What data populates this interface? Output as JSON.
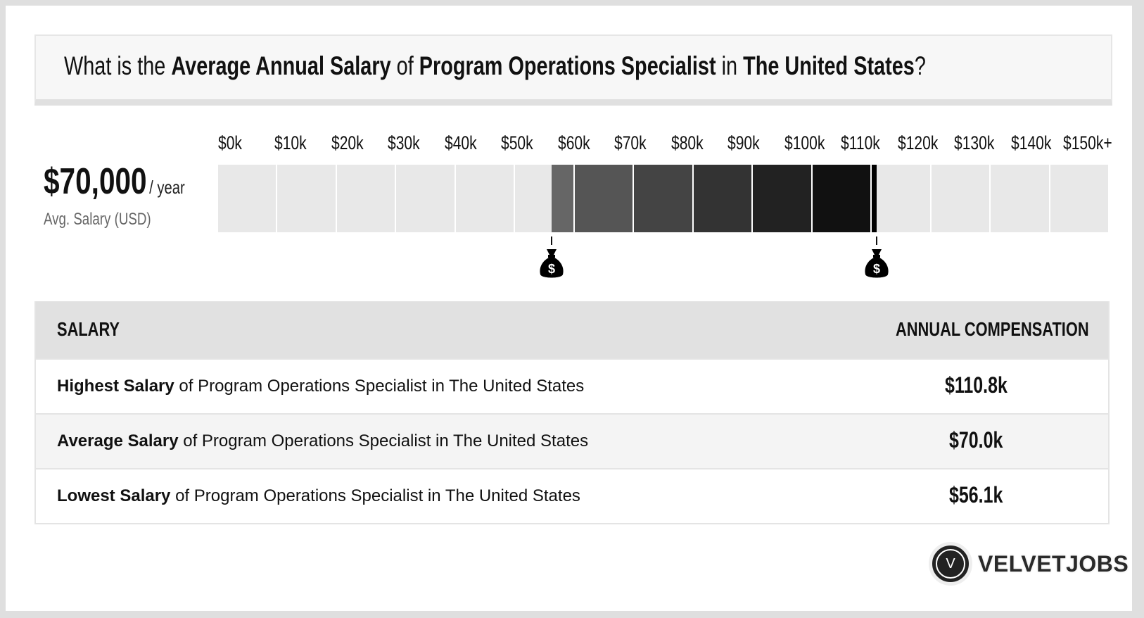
{
  "question": {
    "p1": "What is the ",
    "b1": "Average Annual Salary",
    "p2": " of ",
    "b2": "Program Operations Specialist",
    "p3": " in ",
    "b3": "The United States",
    "p4": "?"
  },
  "summary": {
    "value": "$70,000",
    "unit": "/ year",
    "label": "Avg. Salary (USD)"
  },
  "chart_data": {
    "type": "bar",
    "tick_labels": [
      "$0k",
      "$10k",
      "$20k",
      "$30k",
      "$40k",
      "$50k",
      "$60k",
      "$70k",
      "$80k",
      "$90k",
      "$100k",
      "$110k",
      "$120k",
      "$130k",
      "$140k",
      "$150k+"
    ],
    "xlim": [
      0,
      150000
    ],
    "range": {
      "low": 56100,
      "high": 110800
    },
    "average": 70000,
    "fill_color_low": "#666666",
    "fill_color_high": "#000000",
    "empty_color": "#e8e8e8"
  },
  "markers": [
    {
      "icon": "money-bag-icon",
      "value": 56100
    },
    {
      "icon": "money-bag-icon",
      "value": 110800
    }
  ],
  "table": {
    "headers": [
      "SALARY",
      "ANNUAL COMPENSATION"
    ],
    "rows": [
      {
        "bold": "Highest Salary",
        "rest": " of Program Operations Specialist in The United States",
        "value": "$110.8k"
      },
      {
        "bold": "Average Salary",
        "rest": " of Program Operations Specialist in The United States",
        "value": "$70.0k"
      },
      {
        "bold": "Lowest Salary",
        "rest": " of Program Operations Specialist in The United States",
        "value": "$56.1k"
      }
    ]
  },
  "logo": {
    "letter": "V",
    "text": "VELVETJOBS"
  }
}
